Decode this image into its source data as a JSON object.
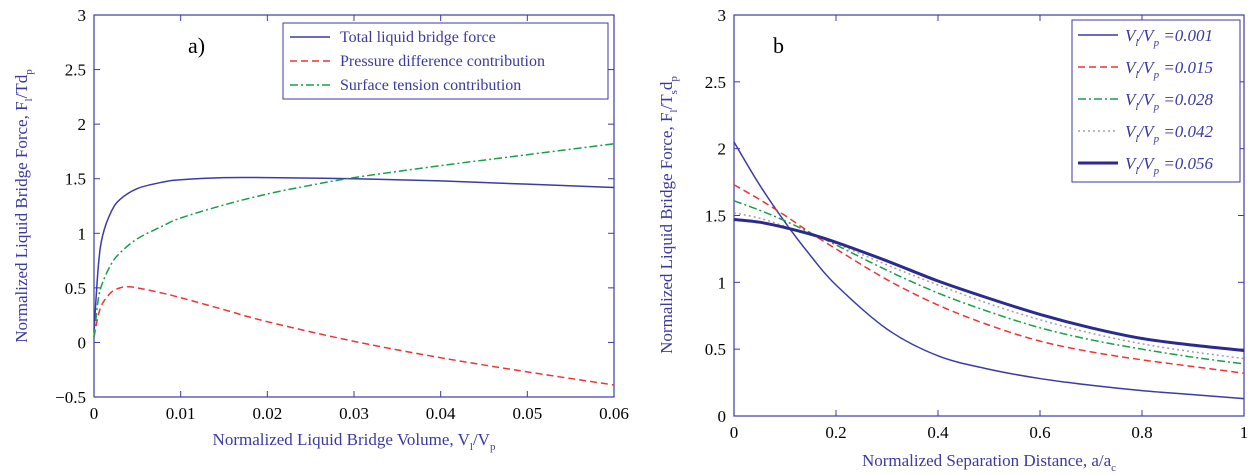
{
  "colors": {
    "axis": "#3b3ba8",
    "blue": "#3b3ba8",
    "red": "#ee3434",
    "green": "#1a9e4a",
    "gray": "#a0a0a0"
  },
  "chart_data": [
    {
      "type": "line",
      "panel_label": "a)",
      "xlim": [
        0,
        0.06
      ],
      "ylim": [
        -0.5,
        3
      ],
      "xticks": [
        "0",
        "0.01",
        "0.02",
        "0.03",
        "0.04",
        "0.05",
        "0.06"
      ],
      "yticks": [
        "−0.5",
        "0",
        "0.5",
        "1",
        "1.5",
        "2",
        "2.5",
        "3"
      ],
      "xlabel": {
        "text": "Normalized Liquid Bridge Volume, V",
        "sub1": "l",
        "mid": "/V",
        "sub2": "p"
      },
      "ylabel": {
        "text": "Normalized Liquid Bridge Force, F",
        "sub1": "l",
        "mid": "/Td",
        "sub2": "p"
      },
      "legend_position": "top-right",
      "series": [
        {
          "name": "Total liquid bridge force",
          "style": "solid",
          "color": "#3b3ba8",
          "x": [
            0.0,
            0.0005,
            0.001,
            0.002,
            0.003,
            0.005,
            0.008,
            0.01,
            0.015,
            0.02,
            0.03,
            0.04,
            0.05,
            0.06
          ],
          "y": [
            0.1,
            0.7,
            0.98,
            1.2,
            1.31,
            1.41,
            1.47,
            1.49,
            1.51,
            1.51,
            1.5,
            1.48,
            1.45,
            1.42
          ]
        },
        {
          "name": "Pressure difference contribution",
          "style": "dashed",
          "color": "#ee3434",
          "x": [
            0.0,
            0.0005,
            0.001,
            0.002,
            0.003,
            0.004,
            0.005,
            0.008,
            0.01,
            0.015,
            0.02,
            0.03,
            0.04,
            0.05,
            0.06
          ],
          "y": [
            0.05,
            0.25,
            0.36,
            0.46,
            0.5,
            0.51,
            0.5,
            0.45,
            0.41,
            0.3,
            0.19,
            0.01,
            -0.14,
            -0.27,
            -0.39
          ]
        },
        {
          "name": "Surface tension contribution",
          "style": "dashdot",
          "color": "#1a9e4a",
          "x": [
            0.0,
            0.0005,
            0.001,
            0.002,
            0.003,
            0.005,
            0.008,
            0.01,
            0.015,
            0.02,
            0.025,
            0.03,
            0.04,
            0.05,
            0.06
          ],
          "y": [
            0.05,
            0.4,
            0.55,
            0.72,
            0.82,
            0.95,
            1.07,
            1.14,
            1.26,
            1.36,
            1.44,
            1.51,
            1.62,
            1.72,
            1.82
          ]
        }
      ]
    },
    {
      "type": "line",
      "panel_label": "b",
      "xlim": [
        0,
        1
      ],
      "ylim": [
        0,
        3
      ],
      "xticks": [
        "0",
        "0.2",
        "0.4",
        "0.6",
        "0.8",
        "1"
      ],
      "yticks": [
        "0",
        "0.5",
        "1",
        "1.5",
        "2",
        "2.5",
        "3"
      ],
      "xlabel": {
        "text": "Normalized Separation Distance, a/a",
        "sub1": "c",
        "mid": "",
        "sub2": ""
      },
      "ylabel": {
        "text": "Normalized Liquid Bridge Force, F",
        "sub1": "l",
        "mid": "/T",
        "sub2": "s",
        "mid2": "d",
        "sub3": "p"
      },
      "legend_position": "top-right",
      "series": [
        {
          "name": "0.001",
          "style": "solid",
          "color": "#3b3ba8",
          "width": 1.5,
          "x": [
            0,
            0.05,
            0.1,
            0.15,
            0.2,
            0.3,
            0.4,
            0.5,
            0.6,
            0.7,
            0.8,
            0.9,
            1.0
          ],
          "y": [
            2.05,
            1.73,
            1.45,
            1.2,
            0.98,
            0.65,
            0.45,
            0.35,
            0.28,
            0.23,
            0.19,
            0.16,
            0.13
          ]
        },
        {
          "name": "0.015",
          "style": "dashed",
          "color": "#ee3434",
          "width": 1.5,
          "x": [
            0,
            0.05,
            0.1,
            0.15,
            0.2,
            0.3,
            0.4,
            0.5,
            0.6,
            0.7,
            0.8,
            0.9,
            1.0
          ],
          "y": [
            1.73,
            1.62,
            1.5,
            1.37,
            1.25,
            1.02,
            0.83,
            0.68,
            0.56,
            0.48,
            0.42,
            0.37,
            0.32
          ]
        },
        {
          "name": "0.028",
          "style": "dashdot",
          "color": "#1a9e4a",
          "width": 1.5,
          "x": [
            0,
            0.05,
            0.1,
            0.15,
            0.2,
            0.3,
            0.4,
            0.5,
            0.6,
            0.7,
            0.8,
            0.9,
            1.0
          ],
          "y": [
            1.61,
            1.54,
            1.46,
            1.37,
            1.28,
            1.09,
            0.92,
            0.78,
            0.66,
            0.57,
            0.5,
            0.44,
            0.39
          ]
        },
        {
          "name": "0.042",
          "style": "dotted",
          "color": "#a0a0a0",
          "width": 1.5,
          "x": [
            0,
            0.05,
            0.1,
            0.15,
            0.2,
            0.3,
            0.4,
            0.5,
            0.6,
            0.7,
            0.8,
            0.9,
            1.0
          ],
          "y": [
            1.52,
            1.48,
            1.42,
            1.36,
            1.29,
            1.13,
            0.98,
            0.84,
            0.72,
            0.62,
            0.54,
            0.48,
            0.43
          ]
        },
        {
          "name": "0.056",
          "style": "solid",
          "color": "#2b2b8f",
          "width": 3,
          "x": [
            0,
            0.05,
            0.1,
            0.15,
            0.2,
            0.3,
            0.4,
            0.5,
            0.6,
            0.7,
            0.8,
            0.9,
            1.0
          ],
          "y": [
            1.47,
            1.45,
            1.41,
            1.36,
            1.3,
            1.16,
            1.01,
            0.88,
            0.76,
            0.66,
            0.58,
            0.53,
            0.49
          ]
        }
      ],
      "legend_prefix": {
        "V1": "V",
        "s1": "l",
        "V2": "/V",
        "s2": "p",
        "eq": " ="
      }
    }
  ]
}
